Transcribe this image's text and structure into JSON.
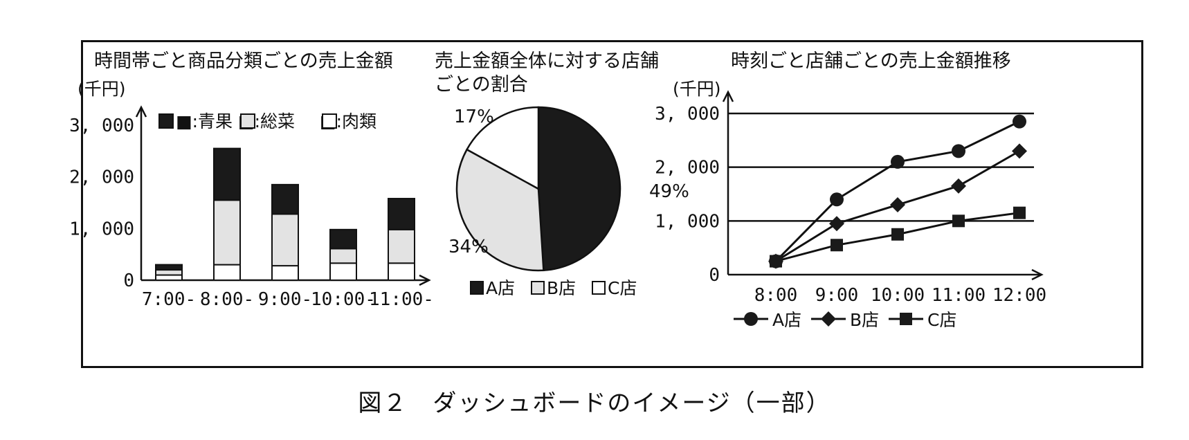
{
  "caption": "図２　ダッシュボードのイメージ（一部）",
  "chart_data": [
    {
      "type": "bar",
      "stacked": true,
      "title": "時間帯ごと商品分類ごとの売上金額",
      "ylabel": "(千円)",
      "ylim": [
        0,
        3000
      ],
      "yticks": [
        "0",
        "1, 000",
        "2, 000",
        "3, 000"
      ],
      "categories": [
        "7:00-",
        "8:00-",
        "9:00-",
        "10:00-",
        "11:00-"
      ],
      "legend": [
        "■:青果",
        "□:総菜",
        "□:肉類"
      ],
      "series": [
        {
          "name": "肉類",
          "color": "#ffffff",
          "values": [
            100,
            300,
            280,
            330,
            330
          ]
        },
        {
          "name": "総菜",
          "color": "#e3e3e3",
          "values": [
            100,
            1250,
            1000,
            280,
            650
          ]
        },
        {
          "name": "青果",
          "color": "#1a1a1a",
          "values": [
            100,
            1000,
            570,
            370,
            600
          ]
        }
      ]
    },
    {
      "type": "pie",
      "title_line1": "売上金額全体に対する店舗",
      "title_line2": "ごとの割合",
      "slices": [
        {
          "name": "A店",
          "value": 49,
          "label": "49%",
          "color": "#1a1a1a"
        },
        {
          "name": "B店",
          "value": 34,
          "label": "34%",
          "color": "#e3e3e3"
        },
        {
          "name": "C店",
          "value": 17,
          "label": "17%",
          "color": "#ffffff"
        }
      ],
      "legend": [
        "A店",
        "B店",
        "C店"
      ]
    },
    {
      "type": "line",
      "title": "時刻ごと店舗ごとの売上金額推移",
      "ylabel": "(千円)",
      "ylim": [
        0,
        3000
      ],
      "yticks": [
        "0",
        "1, 000",
        "2, 000",
        "3, 000"
      ],
      "grid": true,
      "x": [
        "8:00",
        "9:00",
        "10:00",
        "11:00",
        "12:00"
      ],
      "series": [
        {
          "name": "A店",
          "marker": "circle",
          "values": [
            250,
            1400,
            2100,
            2300,
            2850
          ]
        },
        {
          "name": "B店",
          "marker": "diamond",
          "values": [
            250,
            950,
            1300,
            1650,
            2300
          ]
        },
        {
          "name": "C店",
          "marker": "square",
          "values": [
            250,
            550,
            750,
            1000,
            1150
          ]
        }
      ]
    }
  ]
}
